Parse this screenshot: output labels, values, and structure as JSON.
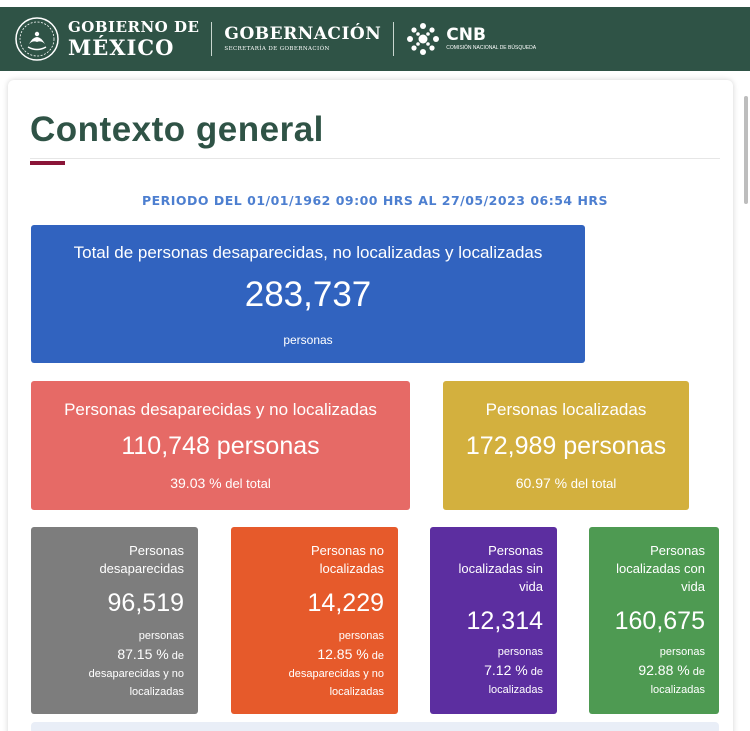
{
  "header": {
    "gobierno_line1": "GOBIERNO DE",
    "gobierno_line2": "MÉXICO",
    "gobernacion": "GOBERNACIÓN",
    "gobernacion_sub": "SECRETARÍA DE GOBERNACIÓN",
    "cnb": "CNB",
    "cnb_sub": "COMISIÓN NACIONAL DE BÚSQUEDA",
    "bg_color": "#2f5346"
  },
  "page": {
    "title": "Contexto general",
    "period": "PERIODO DEL 01/01/1962 09:00 HRS AL 27/05/2023 06:54 HRS"
  },
  "total": {
    "label": "Total de personas desaparecidas, no localizadas y localizadas",
    "value": "283,737",
    "unit": "personas",
    "color": "#3163bf"
  },
  "desaparecidas_no_localizadas": {
    "label": "Personas desaparecidas y no localizadas",
    "value": "110,748 personas",
    "pct": "39.03 %",
    "pct_suffix": " del total",
    "color": "#e66a66"
  },
  "localizadas": {
    "label": "Personas localizadas",
    "value": "172,989 personas",
    "pct": "60.97 %",
    "pct_suffix": " del total",
    "color": "#d3b03e"
  },
  "breakdown": [
    {
      "title_1": "Personas",
      "title_2": "desaparecidas",
      "title_3": "",
      "value": "96,519",
      "unit": "personas",
      "pct": "87.15 %",
      "pct_suffix": " de",
      "desc_1": "desaparecidas y no",
      "desc_2": "localizadas",
      "color": "#7d7d7d"
    },
    {
      "title_1": "Personas no",
      "title_2": "localizadas",
      "title_3": "",
      "value": "14,229",
      "unit": "personas",
      "pct": "12.85 %",
      "pct_suffix": " de",
      "desc_1": "desaparecidas y no",
      "desc_2": "localizadas",
      "color": "#e65a2b"
    },
    {
      "title_1": "Personas",
      "title_2": "localizadas sin",
      "title_3": "vida",
      "value": "12,314",
      "unit": "personas",
      "pct": "7.12 %",
      "pct_suffix": " de",
      "desc_1": "localizadas",
      "desc_2": "",
      "color": "#5c2ea0"
    },
    {
      "title_1": "Personas",
      "title_2": "localizadas con",
      "title_3": "vida",
      "value": "160,675",
      "unit": "personas",
      "pct": "92.88 %",
      "pct_suffix": " de",
      "desc_1": "localizadas",
      "desc_2": "",
      "color": "#4e9a52"
    }
  ]
}
